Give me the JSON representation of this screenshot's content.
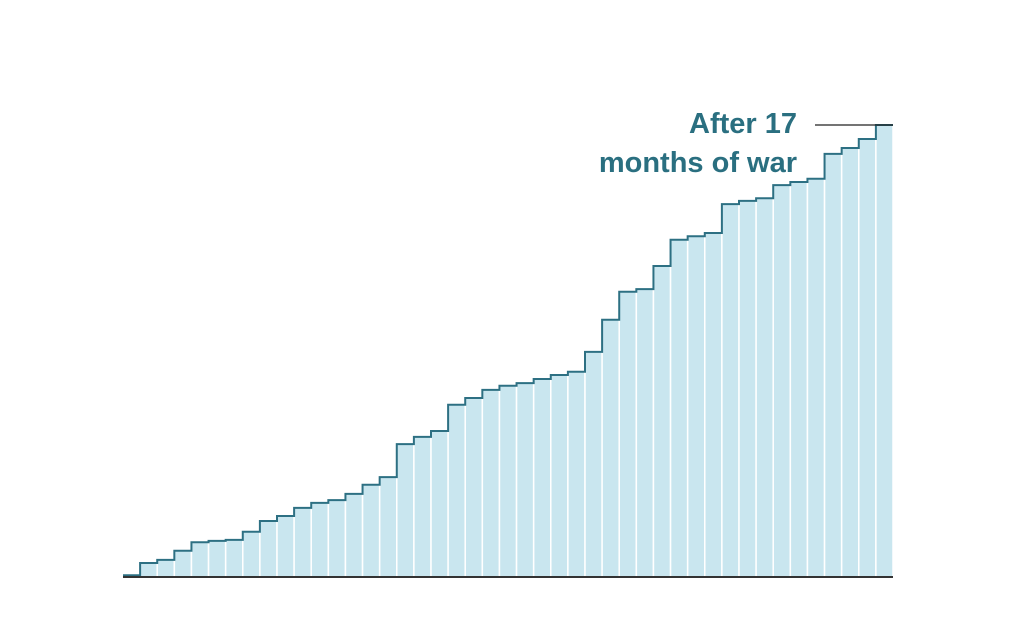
{
  "chart_data": {
    "type": "step-area",
    "annotation": [
      "After 17",
      "months of war"
    ],
    "categories": [
      null,
      null,
      null,
      null,
      null,
      null,
      null,
      null,
      null,
      null,
      null,
      null,
      null,
      null,
      null,
      null,
      null,
      null,
      null,
      null,
      null,
      null,
      null,
      null,
      null,
      null,
      null,
      null,
      null,
      null,
      null,
      null,
      null,
      null,
      null,
      null,
      null,
      null,
      null,
      null,
      null,
      null,
      null,
      null,
      null
    ],
    "values": [
      0.4,
      3.1,
      3.8,
      5.8,
      7.7,
      8,
      8.2,
      10,
      12.4,
      13.5,
      15.3,
      16.4,
      17,
      18.4,
      20.4,
      22.1,
      29.4,
      31,
      32.3,
      38.1,
      39.6,
      41.4,
      42.3,
      42.9,
      43.8,
      44.7,
      45.4,
      49.8,
      56.9,
      63.1,
      63.7,
      68.8,
      74.6,
      75.4,
      76.1,
      82.5,
      83.2,
      83.8,
      86.7,
      87.4,
      88.1,
      93.6,
      94.9,
      96.9,
      100
    ],
    "color": "#c9e6ef",
    "line_color": "#2d7083",
    "ylim": [
      0,
      100
    ]
  }
}
